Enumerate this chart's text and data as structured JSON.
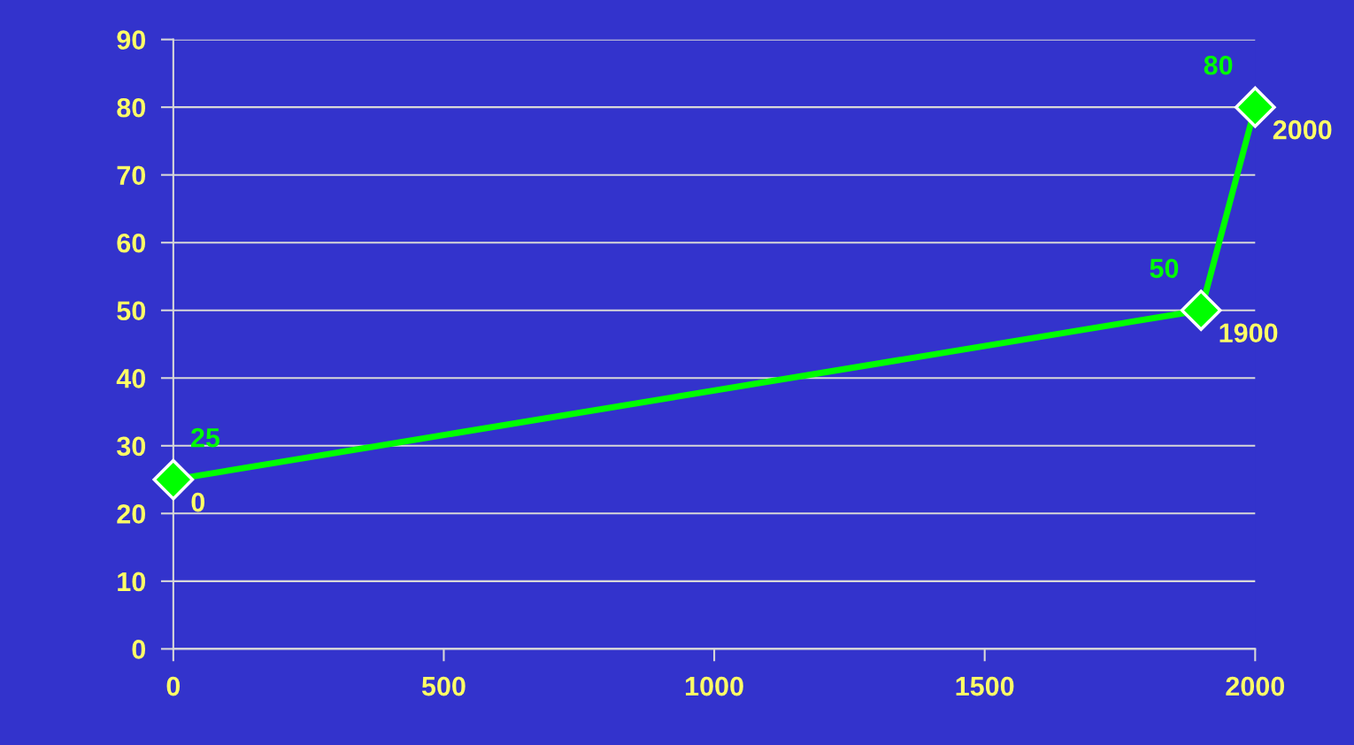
{
  "chart_data": {
    "type": "line",
    "x": [
      0,
      1900,
      2000
    ],
    "series": [
      {
        "color": "#00ff00",
        "values": [
          25,
          50,
          80
        ]
      }
    ],
    "xlim": [
      0,
      2000
    ],
    "xticks": [
      0,
      500,
      1000,
      1500,
      2000
    ],
    "ylim": [
      0,
      90
    ],
    "yticks": [
      0,
      10,
      20,
      30,
      40,
      50,
      60,
      70,
      80,
      90
    ],
    "grid": "y",
    "marker": "diamond",
    "line_style": "solid",
    "data_labels": true,
    "annotations": [
      {
        "text": "0",
        "x": 0,
        "y": 25
      },
      {
        "text": "1900",
        "x": 1900,
        "y": 50
      },
      {
        "text": "2000",
        "x": 2000,
        "y": 80
      }
    ]
  }
}
